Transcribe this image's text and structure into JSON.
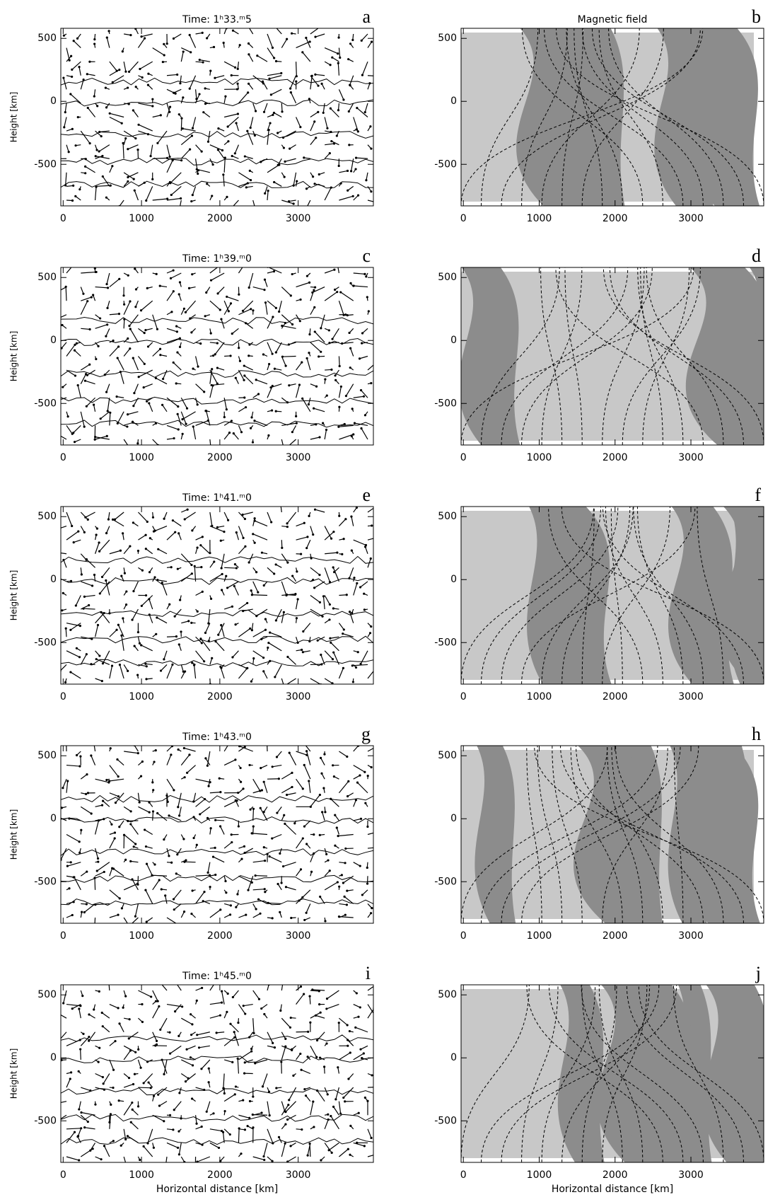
{
  "figure": {
    "xlim": [
      -30,
      3960
    ],
    "ylim": [
      -830,
      580
    ],
    "xticks": [
      0,
      1000,
      2000,
      3000
    ],
    "yticks": [
      -500,
      0,
      500
    ],
    "ylabel": "Height [km]",
    "xlabel": "Horizontal distance [km]",
    "panels": [
      {
        "letter": "a",
        "title": "Time: 1ʰ33.ᵐ5"
      },
      {
        "letter": "b",
        "title": "Magnetic field"
      },
      {
        "letter": "c",
        "title": "Time: 1ʰ39.ᵐ0"
      },
      {
        "letter": "d"
      },
      {
        "letter": "e",
        "title": "Time: 1ʰ41.ᵐ0"
      },
      {
        "letter": "f"
      },
      {
        "letter": "g",
        "title": "Time: 1ʰ43.ᵐ0"
      },
      {
        "letter": "h"
      },
      {
        "letter": "i",
        "title": "Time: 1ʰ45.ᵐ0"
      },
      {
        "letter": "j"
      }
    ]
  }
}
